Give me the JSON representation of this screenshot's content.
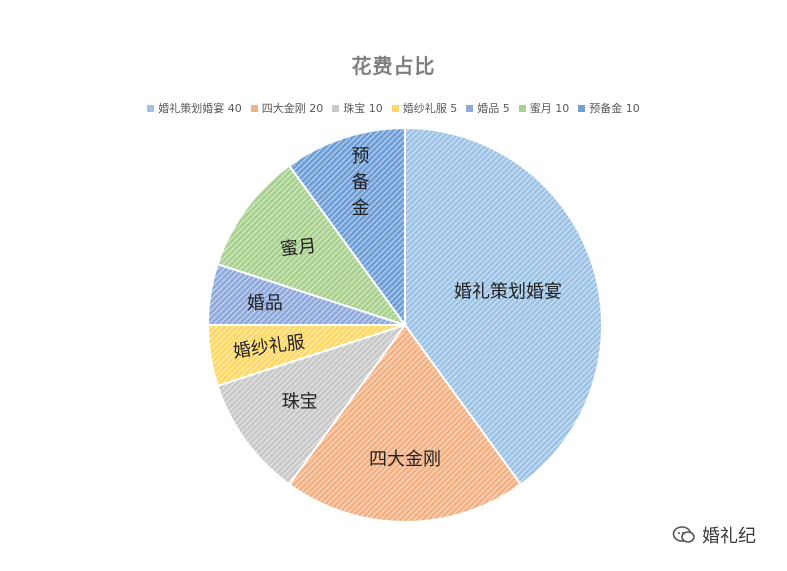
{
  "chart_data": {
    "type": "pie",
    "title": "花费占比",
    "legend_position": "top",
    "slices": [
      {
        "label": "婚礼策划婚宴",
        "value": 40,
        "legend": "婚礼策划婚宴 40",
        "color": "#9dc3e6"
      },
      {
        "label": "四大金刚",
        "value": 20,
        "legend": "四大金刚 20",
        "color": "#f4b183"
      },
      {
        "label": "珠宝",
        "value": 10,
        "legend": "珠宝 10",
        "color": "#c9c9c9"
      },
      {
        "label": "婚纱礼服",
        "value": 5,
        "legend": "婚纱礼服 5",
        "color": "#ffd966"
      },
      {
        "label": "婚品",
        "value": 5,
        "legend": "婚品 5",
        "color": "#8faadc"
      },
      {
        "label": "蜜月",
        "value": 10,
        "legend": "蜜月 10",
        "color": "#a9d18e"
      },
      {
        "label": "预备金",
        "value": 10,
        "legend": "预备金 10",
        "color": "#6f9fd8"
      }
    ]
  },
  "watermark": {
    "text": "婚礼纪",
    "icon": "chat-bubble-icon"
  }
}
